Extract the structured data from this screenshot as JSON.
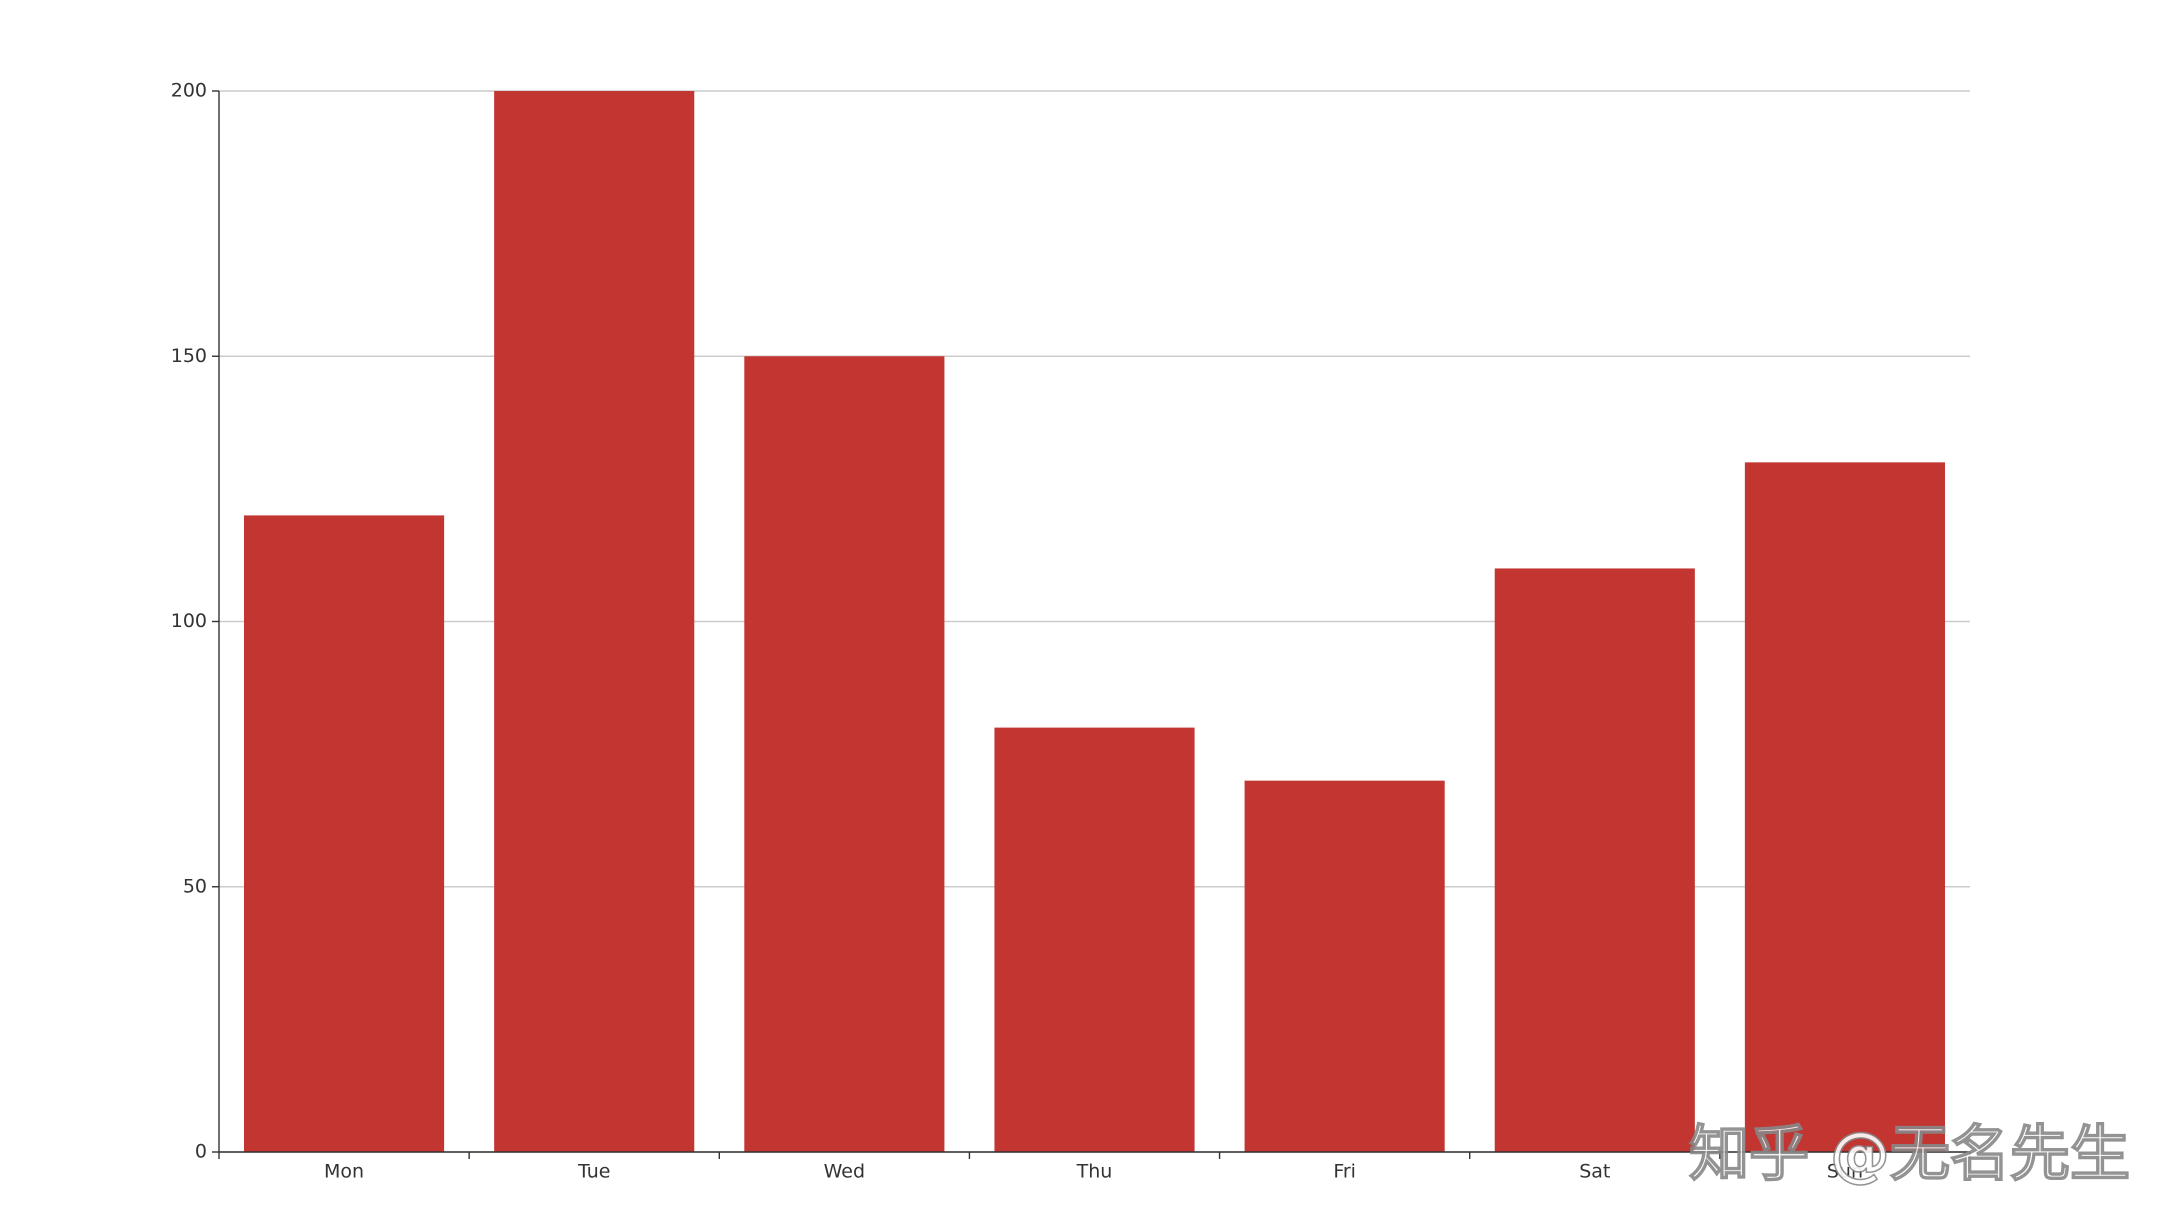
{
  "chart_data": {
    "type": "bar",
    "categories": [
      "Mon",
      "Tue",
      "Wed",
      "Thu",
      "Fri",
      "Sat",
      "Sun"
    ],
    "values": [
      120,
      200,
      150,
      80,
      70,
      110,
      130
    ],
    "color": "#c23531",
    "ylim": [
      0,
      200
    ],
    "yticks": [
      0,
      50,
      100,
      150,
      200
    ],
    "grid": true
  },
  "watermark": "知乎 @无名先生"
}
